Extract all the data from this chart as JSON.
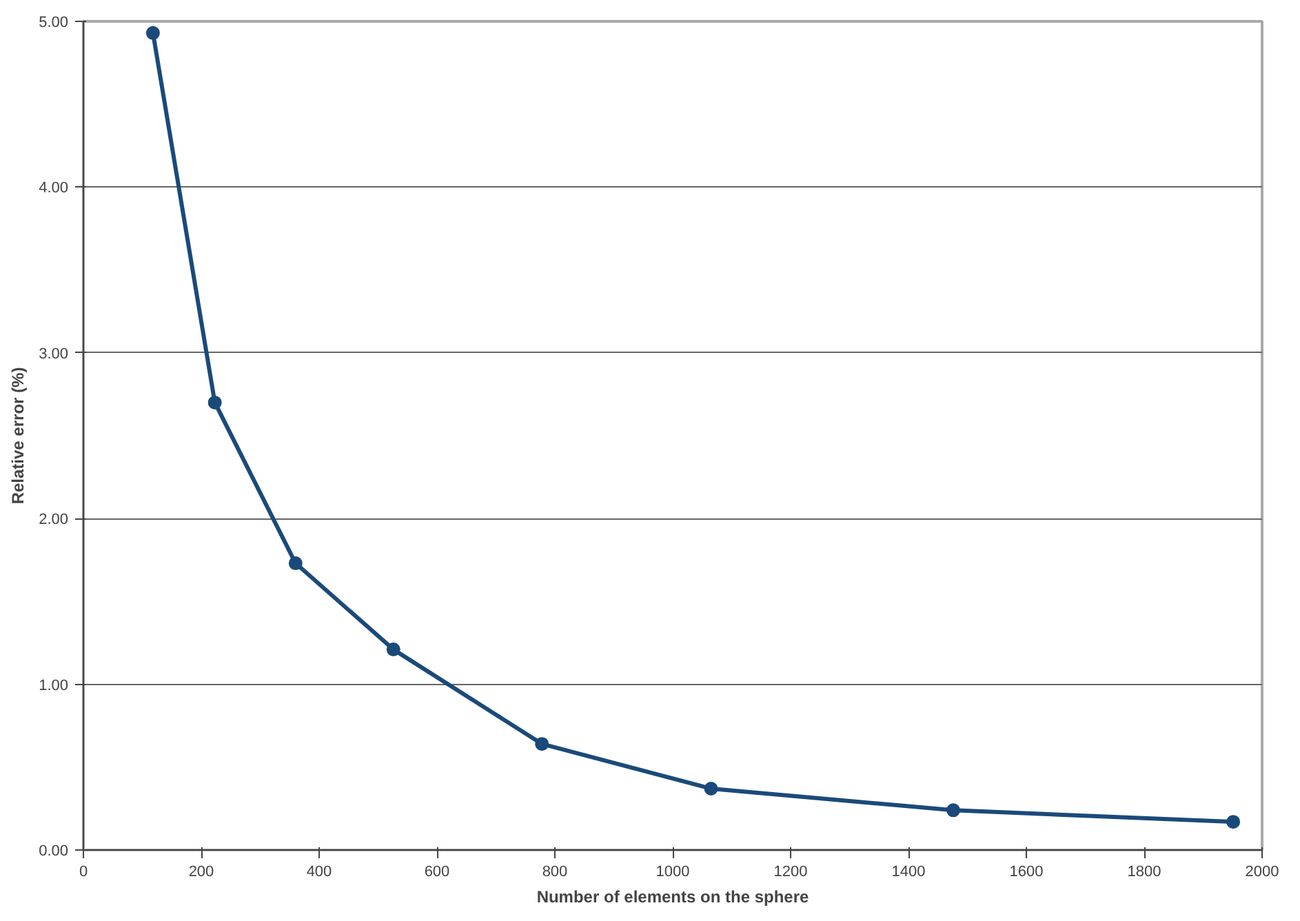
{
  "chart_data": {
    "type": "line",
    "xlabel": "Number of elements on the sphere",
    "ylabel": "Relative error (%)",
    "x": [
      118,
      223,
      360,
      526,
      778,
      1065,
      1476,
      1951
    ],
    "series": [
      {
        "color": "#1a4a7a",
        "values": [
          4.93,
          2.7,
          1.73,
          1.21,
          0.64,
          0.37,
          0.24,
          0.17
        ]
      }
    ],
    "xlim": [
      0,
      2000
    ],
    "xticks": [
      0,
      200,
      400,
      600,
      800,
      1000,
      1200,
      1400,
      1600,
      1800,
      2000
    ],
    "ylim": [
      0,
      5
    ],
    "yticks": [
      {
        "value": 0,
        "label": "0.00"
      },
      {
        "value": 1,
        "label": "1.00"
      },
      {
        "value": 2,
        "label": "2.00"
      },
      {
        "value": 3,
        "label": "3.00"
      },
      {
        "value": 4,
        "label": "4.00"
      },
      {
        "value": 5,
        "label": "5.00"
      }
    ],
    "grid": "y",
    "marker": "circle",
    "line_style": "solid"
  }
}
